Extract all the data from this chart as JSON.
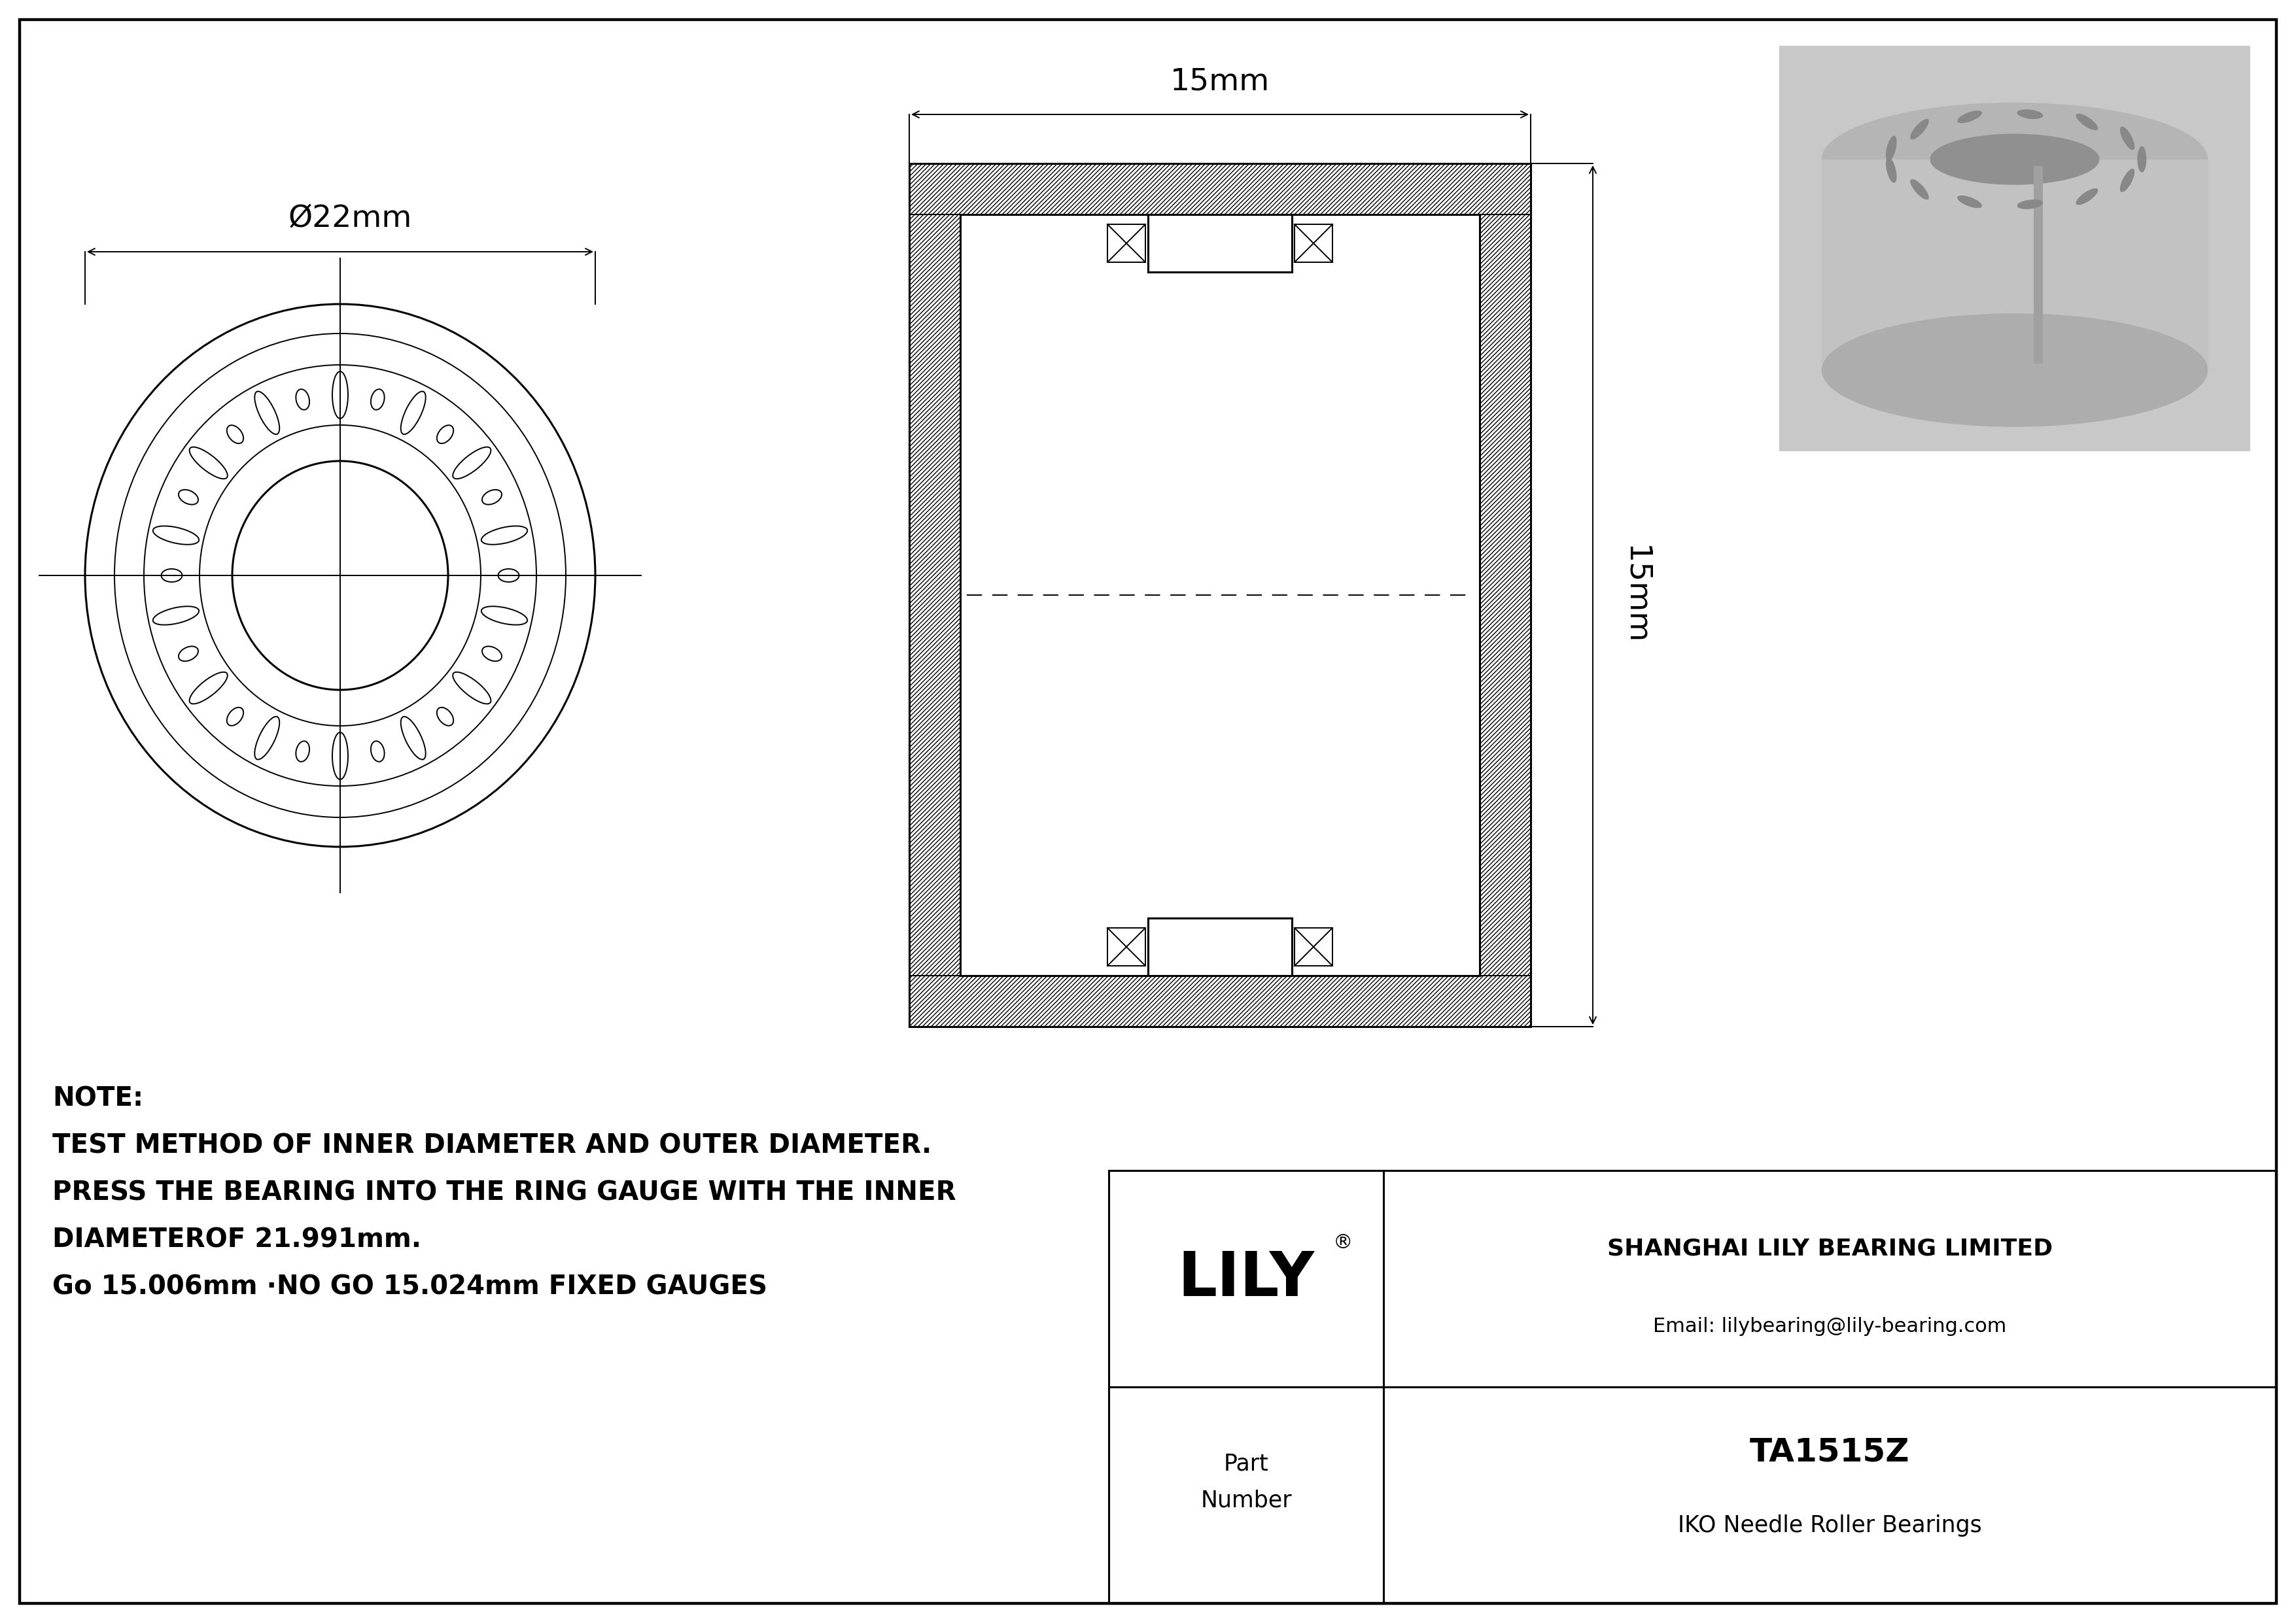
{
  "bg_color": "#ffffff",
  "line_color": "#000000",
  "note_line1": "NOTE:",
  "note_line2": "TEST METHOD OF INNER DIAMETER AND OUTER DIAMETER.",
  "note_line3": "PRESS THE BEARING INTO THE RING GAUGE WITH THE INNER",
  "note_line4": "DIAMETEROF 21.991mm.",
  "note_line5": "Go 15.006mm ·NO GO 15.024mm FIXED GAUGES",
  "company": "SHANGHAI LILY BEARING LIMITED",
  "email": "Email: lilybearing@lily-bearing.com",
  "part_label": "Part\nNumber",
  "part_number": "TA1515Z",
  "part_type": "IKO Needle Roller Bearings",
  "brand": "LILY",
  "brand_reg": "®",
  "dim_od": "Ø22mm",
  "dim_width": "15mm",
  "dim_height": "15mm"
}
